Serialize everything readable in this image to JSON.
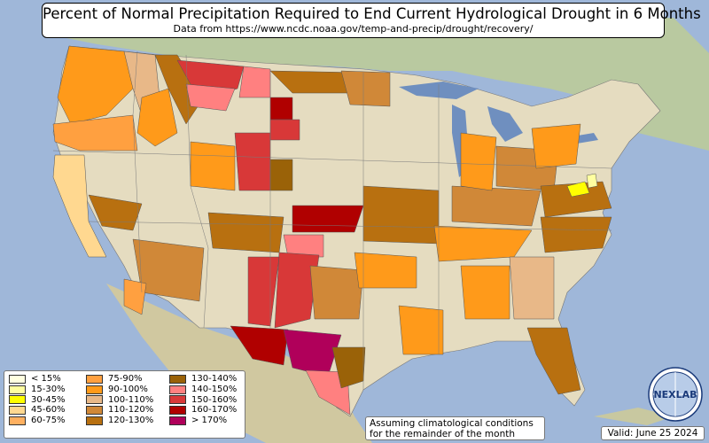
{
  "title": "Percent of Normal Precipitation Required to End Current Hydrological Drought in 6 Months",
  "subtitle": "Data from https://www.ncdc.noaa.gov/temp-and-precip/drought/recovery/",
  "legend": [
    {
      "label": "< 15%",
      "color": "#ffffe0"
    },
    {
      "label": "15-30%",
      "color": "#ffffa0"
    },
    {
      "label": "30-45%",
      "color": "#ffff00"
    },
    {
      "label": "45-60%",
      "color": "#ffd890"
    },
    {
      "label": "60-75%",
      "color": "#ffb060"
    },
    {
      "label": "75-90%",
      "color": "#ffa040"
    },
    {
      "label": "90-100%",
      "color": "#ff9a1a"
    },
    {
      "label": "100-110%",
      "color": "#e8b888"
    },
    {
      "label": "110-120%",
      "color": "#d08838"
    },
    {
      "label": "120-130%",
      "color": "#b87010"
    },
    {
      "label": "130-140%",
      "color": "#9a6208"
    },
    {
      "label": "140-150%",
      "color": "#ff8080"
    },
    {
      "label": "150-160%",
      "color": "#d83838"
    },
    {
      "label": "160-170%",
      "color": "#b00000"
    },
    {
      "label": "> 170%",
      "color": "#b0005a"
    }
  ],
  "note_line1": "Assuming climatological conditions",
  "note_line2": "for the remainder of the month",
  "valid": "Valid: June 25 2024",
  "logo_text": "NEXLAB",
  "colors": {
    "ocean": "#9fb7d9",
    "land": "#d9d3b0",
    "land_green": "#b9c9a0",
    "great_lakes": "#6f8fbf"
  }
}
